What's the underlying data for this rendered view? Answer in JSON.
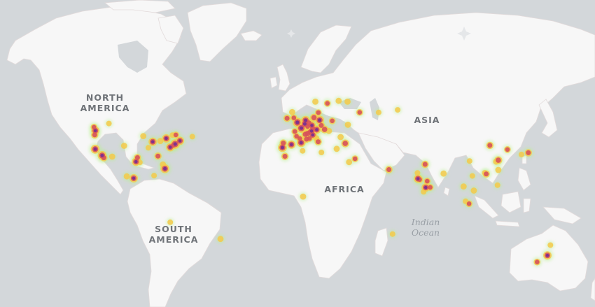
{
  "map": {
    "colors": {
      "ocean": "#d3d7da",
      "land": "#f7f7f7",
      "border": "#e6dede",
      "heat_low": "#b7f08c",
      "heat_mid": "#f4c94a",
      "heat_high": "#d6525a",
      "heat_peak": "#7a2f8f"
    },
    "labels": {
      "north_america": [
        "NORTH",
        "AMERICA"
      ],
      "south_america": [
        "SOUTH",
        "AMERICA"
      ],
      "africa": "AFRICA",
      "asia": "ASIA",
      "indian_ocean": [
        "Indian",
        "Ocean"
      ]
    },
    "heat_points": [
      {
        "lng": -122.4,
        "lat": 37.8,
        "w": 0.9
      },
      {
        "lng": -122.3,
        "lat": 47.6,
        "w": 0.8
      },
      {
        "lng": -123.1,
        "lat": 49.3,
        "w": 0.5
      },
      {
        "lng": -118.2,
        "lat": 34.1,
        "w": 0.9
      },
      {
        "lng": -117.2,
        "lat": 32.7,
        "w": 0.6
      },
      {
        "lng": -112.1,
        "lat": 33.4,
        "w": 0.4
      },
      {
        "lng": -122.7,
        "lat": 45.5,
        "w": 0.6
      },
      {
        "lng": -104.9,
        "lat": 39.7,
        "w": 0.4
      },
      {
        "lng": -97.7,
        "lat": 30.3,
        "w": 0.8
      },
      {
        "lng": -96.8,
        "lat": 32.8,
        "w": 0.6
      },
      {
        "lng": -95.4,
        "lat": 29.8,
        "w": 0.3
      },
      {
        "lng": -93.3,
        "lat": 44.9,
        "w": 0.4
      },
      {
        "lng": -90.2,
        "lat": 38.6,
        "w": 0.3
      },
      {
        "lng": -87.6,
        "lat": 41.9,
        "w": 0.8
      },
      {
        "lng": -84.4,
        "lat": 33.7,
        "w": 0.6
      },
      {
        "lng": -83.0,
        "lat": 42.3,
        "w": 0.4
      },
      {
        "lng": -80.2,
        "lat": 25.8,
        "w": 0.9
      },
      {
        "lng": -81.4,
        "lat": 28.5,
        "w": 0.4
      },
      {
        "lng": -77.0,
        "lat": 38.9,
        "w": 0.8
      },
      {
        "lng": -75.2,
        "lat": 39.9,
        "w": 0.6
      },
      {
        "lng": -74.0,
        "lat": 40.7,
        "w": 1.0
      },
      {
        "lng": -71.1,
        "lat": 42.4,
        "w": 0.8
      },
      {
        "lng": -79.4,
        "lat": 43.7,
        "w": 0.8
      },
      {
        "lng": -73.6,
        "lat": 45.5,
        "w": 0.5
      },
      {
        "lng": -75.7,
        "lat": 45.4,
        "w": 0.3
      },
      {
        "lng": -63.6,
        "lat": 44.6,
        "w": 0.3
      },
      {
        "lng": -114.1,
        "lat": 51.0,
        "w": 0.3
      },
      {
        "lng": -99.1,
        "lat": 19.4,
        "w": 0.8
      },
      {
        "lng": -103.3,
        "lat": 20.7,
        "w": 0.4
      },
      {
        "lng": -86.8,
        "lat": 21.2,
        "w": 0.3
      },
      {
        "lng": -77.0,
        "lat": -12.0,
        "w": 0.3
      },
      {
        "lng": -46.6,
        "lat": -23.5,
        "w": 0.4
      },
      {
        "lng": -9.1,
        "lat": 38.7,
        "w": 0.9
      },
      {
        "lng": -8.6,
        "lat": 41.2,
        "w": 0.6
      },
      {
        "lng": -3.7,
        "lat": 40.4,
        "w": 0.8
      },
      {
        "lng": 2.2,
        "lat": 41.4,
        "w": 0.9
      },
      {
        "lng": -0.1,
        "lat": 51.5,
        "w": 1.0
      },
      {
        "lng": -6.3,
        "lat": 53.3,
        "w": 0.6
      },
      {
        "lng": -2.2,
        "lat": 53.5,
        "w": 0.5
      },
      {
        "lng": -3.2,
        "lat": 55.9,
        "w": 0.4
      },
      {
        "lng": 2.35,
        "lat": 48.85,
        "w": 1.0
      },
      {
        "lng": 4.8,
        "lat": 45.8,
        "w": 0.7
      },
      {
        "lng": 5.4,
        "lat": 43.3,
        "w": 0.6
      },
      {
        "lng": 1.4,
        "lat": 43.6,
        "w": 0.5
      },
      {
        "lng": -1.6,
        "lat": 47.2,
        "w": 0.5
      },
      {
        "lng": -0.6,
        "lat": 44.8,
        "w": 0.5
      },
      {
        "lng": 7.3,
        "lat": 43.7,
        "w": 0.5
      },
      {
        "lng": 4.9,
        "lat": 52.4,
        "w": 0.9
      },
      {
        "lng": 4.4,
        "lat": 50.8,
        "w": 0.9
      },
      {
        "lng": 6.1,
        "lat": 49.6,
        "w": 0.5
      },
      {
        "lng": 6.8,
        "lat": 51.2,
        "w": 0.7
      },
      {
        "lng": 8.7,
        "lat": 50.1,
        "w": 0.8
      },
      {
        "lng": 9.2,
        "lat": 48.8,
        "w": 0.6
      },
      {
        "lng": 11.6,
        "lat": 48.1,
        "w": 0.8
      },
      {
        "lng": 13.4,
        "lat": 52.5,
        "w": 0.9
      },
      {
        "lng": 10.0,
        "lat": 53.6,
        "w": 0.7
      },
      {
        "lng": 8.5,
        "lat": 47.4,
        "w": 0.8
      },
      {
        "lng": 6.1,
        "lat": 46.2,
        "w": 0.7
      },
      {
        "lng": 7.4,
        "lat": 46.9,
        "w": 0.5
      },
      {
        "lng": 9.2,
        "lat": 45.5,
        "w": 0.8
      },
      {
        "lng": 12.5,
        "lat": 41.9,
        "w": 0.6
      },
      {
        "lng": 11.3,
        "lat": 43.8,
        "w": 0.4
      },
      {
        "lng": 16.4,
        "lat": 48.2,
        "w": 0.7
      },
      {
        "lng": 14.4,
        "lat": 50.1,
        "w": 0.6
      },
      {
        "lng": 12.6,
        "lat": 55.7,
        "w": 0.5
      },
      {
        "lng": 18.1,
        "lat": 59.3,
        "w": 0.5
      },
      {
        "lng": 10.8,
        "lat": 59.9,
        "w": 0.4
      },
      {
        "lng": 24.9,
        "lat": 60.2,
        "w": 0.4
      },
      {
        "lng": 21.0,
        "lat": 52.2,
        "w": 0.5
      },
      {
        "lng": 19.0,
        "lat": 47.5,
        "w": 0.4
      },
      {
        "lng": 26.1,
        "lat": 44.4,
        "w": 0.4
      },
      {
        "lng": 23.7,
        "lat": 38.0,
        "w": 0.4
      },
      {
        "lng": 28.9,
        "lat": 41.0,
        "w": 0.7
      },
      {
        "lng": 30.5,
        "lat": 50.4,
        "w": 0.4
      },
      {
        "lng": 37.6,
        "lat": 55.8,
        "w": 0.5
      },
      {
        "lng": 30.3,
        "lat": 59.9,
        "w": 0.4
      },
      {
        "lng": 49.1,
        "lat": 55.8,
        "w": 0.3
      },
      {
        "lng": 60.6,
        "lat": 56.8,
        "w": 0.3
      },
      {
        "lng": 34.8,
        "lat": 32.1,
        "w": 0.5
      },
      {
        "lng": 31.2,
        "lat": 30.0,
        "w": 0.4
      },
      {
        "lng": 14.5,
        "lat": 35.9,
        "w": 0.3
      },
      {
        "lng": 3.1,
        "lat": 36.8,
        "w": 0.3
      },
      {
        "lng": -7.6,
        "lat": 33.6,
        "w": 0.6
      },
      {
        "lng": 3.4,
        "lat": 6.5,
        "w": 0.4
      },
      {
        "lng": 57.5,
        "lat": -20.2,
        "w": 0.3
      },
      {
        "lng": 55.3,
        "lat": 25.2,
        "w": 0.6
      },
      {
        "lng": 72.9,
        "lat": 19.1,
        "w": 0.8
      },
      {
        "lng": 77.2,
        "lat": 28.6,
        "w": 0.6
      },
      {
        "lng": 77.6,
        "lat": 12.97,
        "w": 0.8
      },
      {
        "lng": 78.5,
        "lat": 17.4,
        "w": 0.5
      },
      {
        "lng": 80.3,
        "lat": 13.1,
        "w": 0.5
      },
      {
        "lng": 73.9,
        "lat": 18.5,
        "w": 0.5
      },
      {
        "lng": 76.3,
        "lat": 9.9,
        "w": 0.3
      },
      {
        "lng": 88.4,
        "lat": 22.6,
        "w": 0.4
      },
      {
        "lng": 72.6,
        "lat": 23.0,
        "w": 0.3
      },
      {
        "lng": 103.8,
        "lat": 1.35,
        "w": 0.5
      },
      {
        "lng": 100.5,
        "lat": 13.75,
        "w": 0.4
      },
      {
        "lng": 106.7,
        "lat": 10.8,
        "w": 0.4
      },
      {
        "lng": 105.8,
        "lat": 21.0,
        "w": 0.3
      },
      {
        "lng": 114.2,
        "lat": 22.3,
        "w": 0.6
      },
      {
        "lng": 113.3,
        "lat": 23.1,
        "w": 0.3
      },
      {
        "lng": 121.5,
        "lat": 31.2,
        "w": 0.7
      },
      {
        "lng": 116.4,
        "lat": 39.9,
        "w": 0.6
      },
      {
        "lng": 120.2,
        "lat": 30.3,
        "w": 0.4
      },
      {
        "lng": 121.5,
        "lat": 25.0,
        "w": 0.4
      },
      {
        "lng": 127.0,
        "lat": 37.6,
        "w": 0.5
      },
      {
        "lng": 139.7,
        "lat": 35.7,
        "w": 0.6
      },
      {
        "lng": 135.5,
        "lat": 34.7,
        "w": 0.3
      },
      {
        "lng": 104.1,
        "lat": 30.7,
        "w": 0.3
      },
      {
        "lng": 121.0,
        "lat": 14.6,
        "w": 0.3
      },
      {
        "lng": 101.7,
        "lat": 3.1,
        "w": 0.3
      },
      {
        "lng": 151.2,
        "lat": -33.9,
        "w": 0.8
      },
      {
        "lng": 144.96,
        "lat": -37.8,
        "w": 0.5
      },
      {
        "lng": 153.0,
        "lat": -27.5,
        "w": 0.3
      }
    ]
  }
}
